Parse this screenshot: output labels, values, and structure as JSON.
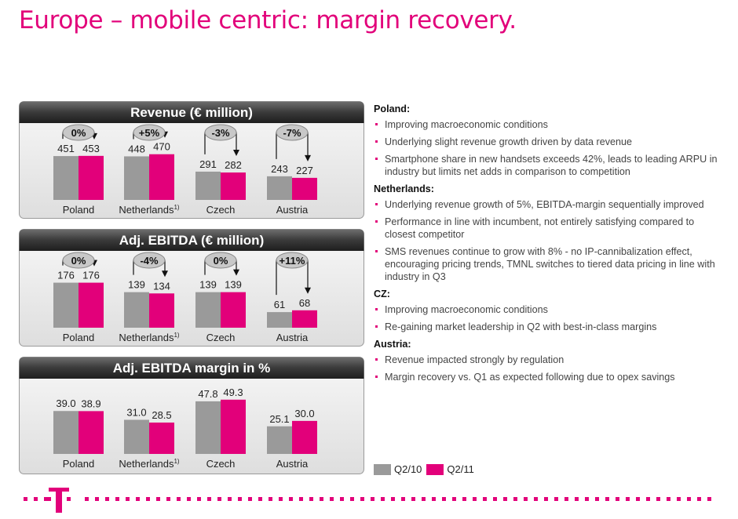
{
  "title": "Europe – mobile centric: margin recovery.",
  "colors": {
    "q2_10": "#9a9a9a",
    "q2_11": "#e2007a",
    "accent": "#e2007a"
  },
  "legend": [
    {
      "label": "Q2/10",
      "color": "#9a9a9a"
    },
    {
      "label": "Q2/11",
      "color": "#e2007a"
    }
  ],
  "chart_data": [
    {
      "type": "bar",
      "title": "Revenue (€ million)",
      "categories": [
        "Poland",
        "Netherlands",
        "Czech",
        "Austria"
      ],
      "category_superscripts": [
        "",
        "1)",
        "",
        ""
      ],
      "series": [
        {
          "name": "Q2/10",
          "values": [
            451,
            448,
            291,
            243
          ]
        },
        {
          "name": "Q2/11",
          "values": [
            453,
            470,
            282,
            227
          ]
        }
      ],
      "changes": [
        "0%",
        "+5%",
        "-3%",
        "-7%"
      ],
      "ylim": [
        0,
        1000
      ]
    },
    {
      "type": "bar",
      "title": "Adj. EBITDA (€ million)",
      "categories": [
        "Poland",
        "Netherlands",
        "Czech",
        "Austria"
      ],
      "category_superscripts": [
        "",
        "1)",
        "",
        ""
      ],
      "series": [
        {
          "name": "Q2/10",
          "values": [
            176,
            139,
            139,
            61
          ]
        },
        {
          "name": "Q2/11",
          "values": [
            176,
            134,
            139,
            68
          ]
        }
      ],
      "changes": [
        "0%",
        "-4%",
        "0%",
        "+11%"
      ],
      "ylim": [
        0,
        380
      ]
    },
    {
      "type": "bar",
      "title": "Adj. EBITDA margin in %",
      "categories": [
        "Poland",
        "Netherlands",
        "Czech",
        "Austria"
      ],
      "category_superscripts": [
        "",
        "1)",
        "",
        ""
      ],
      "series": [
        {
          "name": "Q2/10",
          "values": [
            39.0,
            31.0,
            47.8,
            25.1
          ],
          "labels": [
            "39.0",
            "31.0",
            "47.8",
            "25.1"
          ]
        },
        {
          "name": "Q2/11",
          "values": [
            38.9,
            28.5,
            49.3,
            30.0
          ],
          "labels": [
            "38.9",
            "28.5",
            "49.3",
            "30.0"
          ]
        }
      ],
      "changes": [],
      "ylim": [
        0,
        100
      ]
    }
  ],
  "commentary": [
    {
      "heading": "Poland:",
      "bullets": [
        "Improving macroeconomic conditions",
        "Underlying slight revenue growth driven by data revenue",
        "Smartphone share in new handsets exceeds 42%, leads to leading ARPU in industry but limits net adds in comparison to competition"
      ]
    },
    {
      "heading": "Netherlands:",
      "bullets": [
        "Underlying revenue growth of 5%, EBITDA-margin sequentially improved",
        "Performance in line with incumbent, not entirely satisfying compared to closest competitor",
        "SMS revenues continue to grow with 8% - no IP-cannibalization effect, encouraging pricing trends, TMNL switches to tiered data pricing in line with industry in Q3"
      ]
    },
    {
      "heading": "CZ:",
      "bullets": [
        "Improving macroeconomic conditions",
        "Re-gaining market leadership in Q2 with best-in-class margins"
      ]
    },
    {
      "heading": "Austria:",
      "bullets": [
        "Revenue impacted strongly by regulation",
        "Margin recovery vs. Q1 as expected following due to opex savings"
      ]
    }
  ]
}
